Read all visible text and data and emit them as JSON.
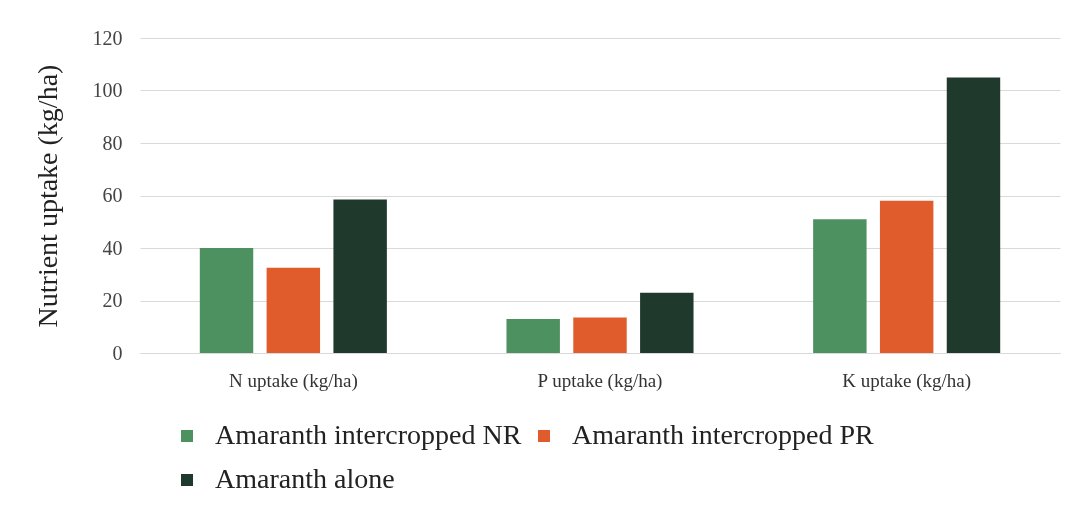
{
  "chart_data": {
    "type": "bar",
    "ylabel": "Nutrient uptake (kg/ha)",
    "categories": [
      "N uptake (kg/ha)",
      "P uptake (kg/ha)",
      "K uptake (kg/ha)"
    ],
    "series": [
      {
        "name": "Amaranth intercropped NR",
        "color": "#4e9161",
        "values": [
          40,
          13,
          51
        ]
      },
      {
        "name": "Amaranth intercropped PR",
        "color": "#e05c2c",
        "values": [
          32.5,
          13.5,
          58
        ]
      },
      {
        "name": "Amaranth alone",
        "color": "#1f3a2d",
        "values": [
          58.5,
          23,
          105
        ]
      }
    ],
    "ylim": [
      0,
      120
    ],
    "yticks": [
      0,
      20,
      40,
      60,
      80,
      100,
      120
    ],
    "grid": "y",
    "legend": "bottom"
  }
}
